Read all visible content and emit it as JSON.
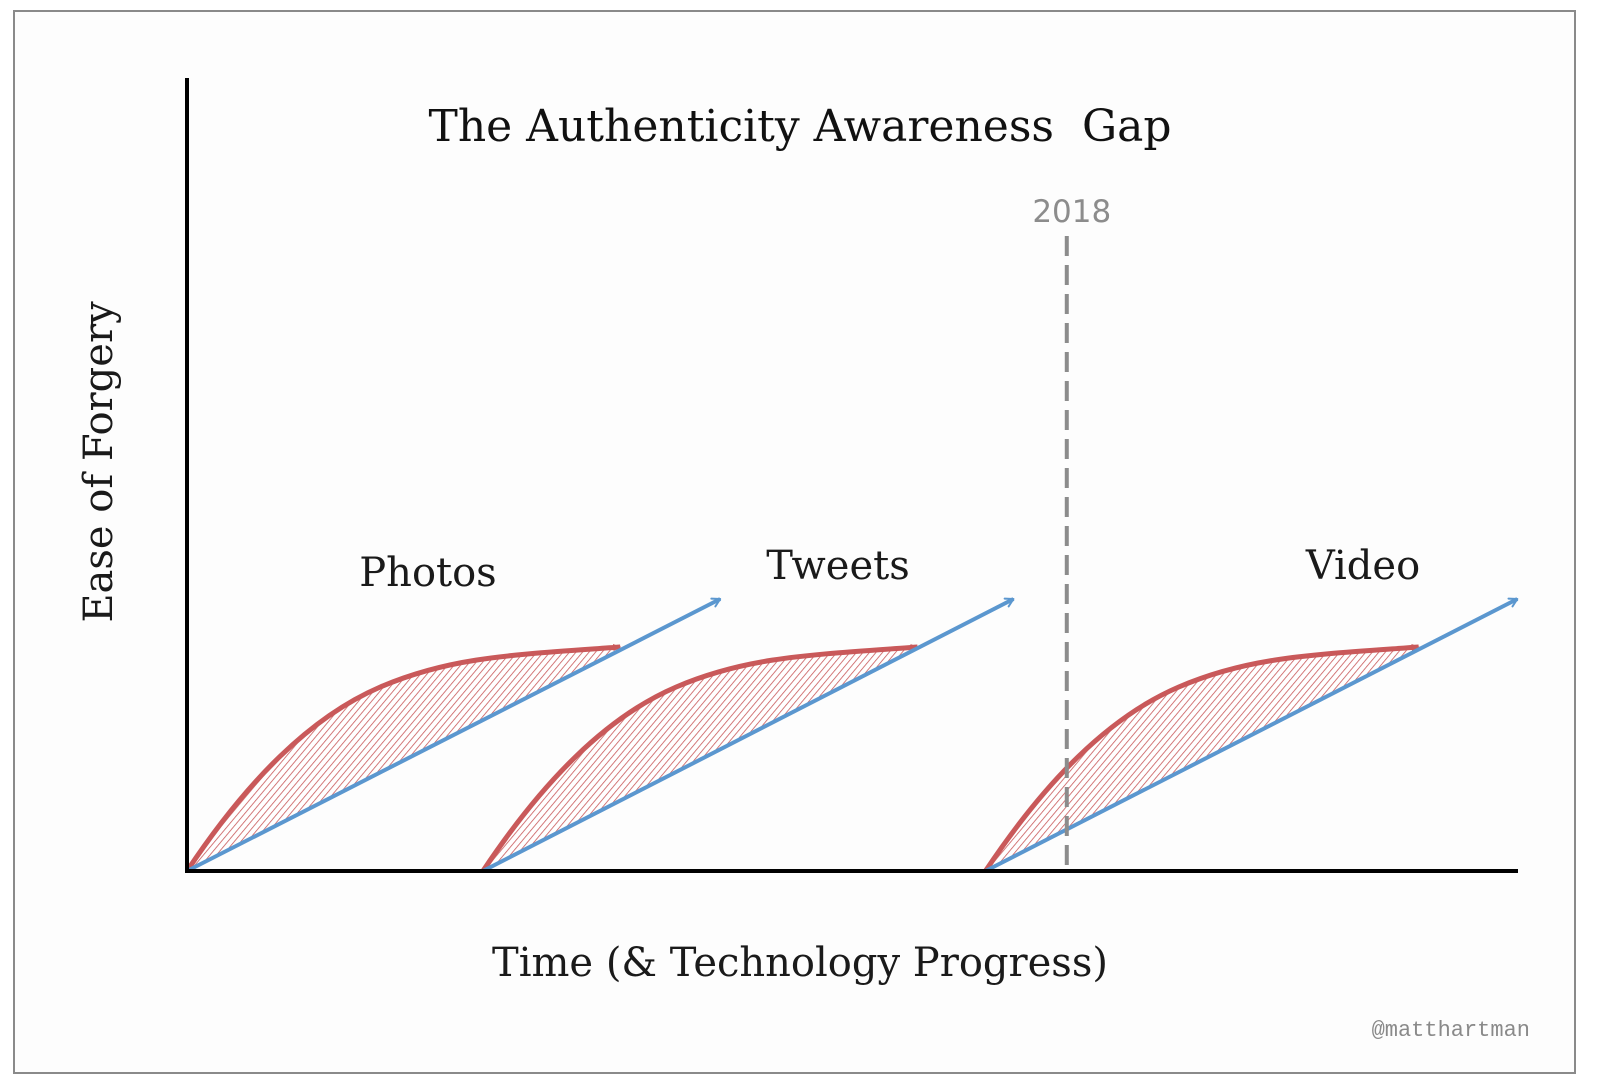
{
  "chart_data": {
    "type": "diagram",
    "title": "The Authenticity Awareness  Gap",
    "xlabel": "Time (& Technology Progress)",
    "ylabel": "Ease of Forgery",
    "grid": false,
    "marker": {
      "label": "2018",
      "x": 0.66,
      "style": "dashed",
      "color": "#8c8c8c"
    },
    "colors": {
      "forgery_curve": "#c9595a",
      "awareness_line": "#5b97cf",
      "axis": "#000000"
    },
    "series": [
      {
        "name": "Photos",
        "start_x": 0.0,
        "awareness_end": [
          0.4,
          0.34
        ],
        "forgery_end": [
          0.325,
          0.28
        ],
        "forgery_bulge": [
          0.145,
          0.23
        ]
      },
      {
        "name": "Tweets",
        "start_x": 0.222,
        "awareness_end": [
          0.62,
          0.34
        ],
        "forgery_end": [
          0.548,
          0.28
        ],
        "forgery_bulge": [
          0.367,
          0.23
        ]
      },
      {
        "name": "Video",
        "start_x": 0.599,
        "awareness_end": [
          0.998,
          0.34
        ],
        "forgery_end": [
          0.924,
          0.28
        ],
        "forgery_bulge": [
          0.744,
          0.23
        ]
      }
    ],
    "legend": "none",
    "annotations": [
      "Photos",
      "Tweets",
      "Video",
      "2018"
    ]
  },
  "credit": "@matthartman"
}
